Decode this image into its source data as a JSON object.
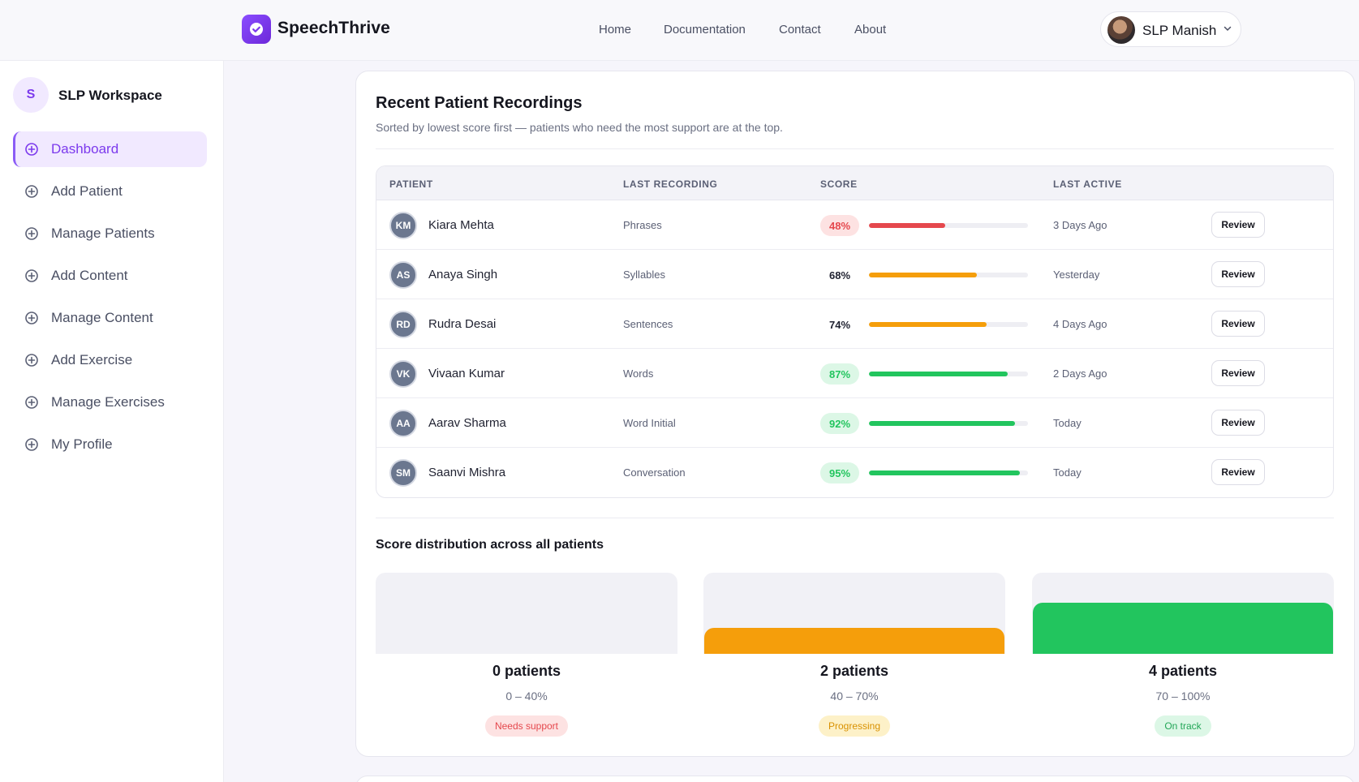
{
  "app": {
    "name": "SpeechThrive"
  },
  "nav": {
    "items": [
      "Home",
      "Documentation",
      "Contact",
      "About"
    ]
  },
  "user": {
    "name": "SLP Manish"
  },
  "sidebar": {
    "workspace_initial": "S",
    "workspace_name": "SLP Workspace",
    "items": [
      {
        "label": "Dashboard",
        "active": true
      },
      {
        "label": "Add Patient"
      },
      {
        "label": "Manage Patients"
      },
      {
        "label": "Add Content"
      },
      {
        "label": "Manage Content"
      },
      {
        "label": "Add Exercise"
      },
      {
        "label": "Manage Exercises"
      },
      {
        "label": "My Profile"
      }
    ]
  },
  "recordings": {
    "title": "Recent Patient Recordings",
    "subtitle": "Sorted by lowest score first — patients who need the most support are at the top.",
    "columns": [
      "PATIENT",
      "LAST RECORDING",
      "SCORE",
      "LAST ACTIVE"
    ],
    "review_label": "Review",
    "rows": [
      {
        "initials": "KM",
        "name": "Kiara Mehta",
        "recording": "Phrases",
        "score": "48%",
        "score_value": 48,
        "status": "red",
        "last_active": "3 Days Ago"
      },
      {
        "initials": "AS",
        "name": "Anaya Singh",
        "recording": "Syllables",
        "score": "68%",
        "score_value": 68,
        "status": "amber",
        "last_active": "Yesterday"
      },
      {
        "initials": "RD",
        "name": "Rudra Desai",
        "recording": "Sentences",
        "score": "74%",
        "score_value": 74,
        "status": "amber",
        "last_active": "4 Days Ago"
      },
      {
        "initials": "VK",
        "name": "Vivaan Kumar",
        "recording": "Words",
        "score": "87%",
        "score_value": 87,
        "status": "green",
        "last_active": "2 Days Ago"
      },
      {
        "initials": "AA",
        "name": "Aarav Sharma",
        "recording": "Word Initial",
        "score": "92%",
        "score_value": 92,
        "status": "green",
        "last_active": "Today"
      },
      {
        "initials": "SM",
        "name": "Saanvi Mishra",
        "recording": "Conversation",
        "score": "95%",
        "score_value": 95,
        "status": "green",
        "last_active": "Today"
      }
    ]
  },
  "distribution": {
    "title": "Score distribution across all patients",
    "buckets": [
      {
        "count_label": "0 patients",
        "count": 0,
        "range": "0 – 40%",
        "badge": "Needs support",
        "tone": "red"
      },
      {
        "count_label": "2 patients",
        "count": 2,
        "range": "40 – 70%",
        "badge": "Progressing",
        "tone": "amber"
      },
      {
        "count_label": "4 patients",
        "count": 4,
        "range": "70 – 100%",
        "badge": "On track",
        "tone": "green"
      }
    ]
  },
  "colors": {
    "accent": "#7c3aed",
    "red": "#e5484d",
    "amber": "#f59e0b",
    "green": "#22c55e"
  }
}
